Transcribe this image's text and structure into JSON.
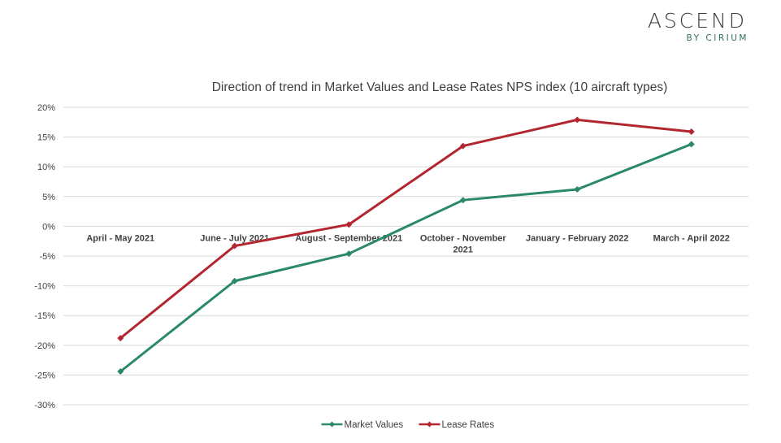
{
  "brand": {
    "name": "ASCEND",
    "tagline": "BY CIRIUM"
  },
  "chart_data": {
    "type": "line",
    "title": "Direction of trend in Market Values and Lease Rates NPS index (10 aircraft types)",
    "xlabel": "",
    "ylabel": "",
    "categories": [
      [
        "April - May 2021"
      ],
      [
        "June - July 2021"
      ],
      [
        "August - September 2021"
      ],
      [
        "October - November",
        "2021"
      ],
      [
        "January - February 2022"
      ],
      [
        "March - April 2022"
      ]
    ],
    "ylim": [
      -30,
      20
    ],
    "ytick_step": 5,
    "ytick_suffix": "%",
    "grid": true,
    "legend_position": "bottom",
    "series": [
      {
        "name": "Market Values",
        "color": "#2a8a67",
        "values": [
          -24.4,
          -9.2,
          -4.6,
          4.4,
          6.2,
          13.8
        ]
      },
      {
        "name": "Lease Rates",
        "color": "#b3262f",
        "values": [
          -18.8,
          -3.3,
          0.3,
          13.5,
          17.9,
          15.9
        ]
      }
    ]
  }
}
